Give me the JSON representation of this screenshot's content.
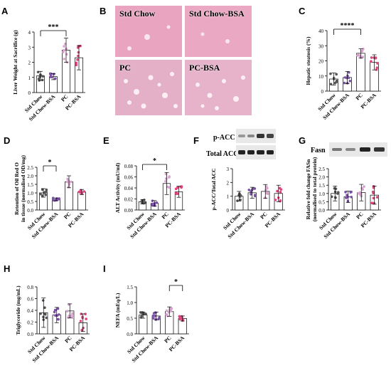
{
  "panel_labels": {
    "A": "A",
    "B": "B",
    "C": "C",
    "D": "D",
    "E": "E",
    "F": "F",
    "G": "G",
    "H": "H",
    "I": "I"
  },
  "groups": [
    "Std Chow",
    "Std Chow-BSA",
    "PC",
    "PC-BSA"
  ],
  "colors": {
    "std_chow": "#555555",
    "std_chow_bsa": "#7b52a8",
    "pc": "#d9a3cf",
    "pc_bsa": "#e0447f"
  },
  "histology": {
    "labels": [
      "Std Chow",
      "Std Chow-BSA",
      "PC",
      "PC-BSA"
    ]
  },
  "blots": {
    "f_top": "p-ACC",
    "f_bottom": "Total ACC",
    "g_top": "Fasn"
  },
  "chart_data": [
    {
      "panel": "A",
      "type": "bar",
      "categories": [
        "Std Chow",
        "Std Chow-BSA",
        "PC",
        "PC-BSA"
      ],
      "values": [
        1.1,
        1.05,
        2.8,
        2.3
      ],
      "errors": [
        0.3,
        0.2,
        0.8,
        0.8
      ],
      "ylabel": "Liver Weight at Sacrifice (g)",
      "ylim": [
        0,
        4
      ],
      "yticks": [
        "0",
        "1",
        "2",
        "3",
        "4"
      ],
      "significance": {
        "between": [
          0,
          2
        ],
        "text": "***"
      }
    },
    {
      "panel": "C",
      "type": "bar",
      "categories": [
        "Std Chow",
        "Std Chow-BSA",
        "PC",
        "PC-BSA"
      ],
      "values": [
        8,
        9,
        25,
        19
      ],
      "errors": [
        4,
        4,
        3,
        5
      ],
      "ylabel": "Hepatic steatosis (%)",
      "ylim": [
        0,
        40
      ],
      "yticks": [
        "0",
        "10",
        "20",
        "30",
        "40"
      ],
      "significance": {
        "between": [
          0,
          2
        ],
        "text": "****"
      }
    },
    {
      "panel": "D",
      "type": "bar",
      "categories": [
        "Std Chow",
        "Std Chow-BSA",
        "PC",
        "PC-BSA"
      ],
      "values": [
        1.0,
        0.62,
        1.65,
        1.05
      ],
      "errors": [
        0.25,
        0.08,
        0.35,
        0.15
      ],
      "ylabel": "Retention of Oil Red O in tissue (normalised OD/mg)",
      "ylim": [
        0,
        2.5
      ],
      "yticks": [
        "0.0",
        "0.5",
        "1.0",
        "1.5",
        "2.0",
        "2.5"
      ],
      "significance": {
        "between": [
          0,
          1
        ],
        "text": "*"
      }
    },
    {
      "panel": "E",
      "type": "bar",
      "categories": [
        "Std Chow",
        "Std Chow-BSA",
        "PC",
        "PC-BSA"
      ],
      "values": [
        0.015,
        0.012,
        0.048,
        0.033
      ],
      "errors": [
        0.004,
        0.005,
        0.02,
        0.01
      ],
      "ylabel": "ALT Activity (mU/ml)",
      "ylim": [
        0,
        0.08
      ],
      "yticks": [
        "0.00",
        "0.02",
        "0.04",
        "0.06",
        "0.08"
      ],
      "significance": {
        "between": [
          0,
          2
        ],
        "text": "*"
      }
    },
    {
      "panel": "F",
      "type": "bar",
      "categories": [
        "Std Chow",
        "Std Chow-BSA",
        "PC",
        "PC-BSA"
      ],
      "values": [
        1.0,
        1.25,
        1.35,
        1.2
      ],
      "errors": [
        0.35,
        0.4,
        0.5,
        0.6
      ],
      "ylabel": "p-ACC/Total ACC",
      "ylim": [
        0,
        3
      ],
      "yticks": [
        "0",
        "1",
        "2",
        "3"
      ]
    },
    {
      "panel": "G",
      "type": "bar",
      "categories": [
        "Std Chow",
        "Std Chow-BSA",
        "PC",
        "PC-BSA"
      ],
      "values": [
        1.0,
        0.8,
        1.05,
        0.9
      ],
      "errors": [
        0.45,
        0.35,
        0.5,
        0.55
      ],
      "ylabel": "Relative fold change FASn (normalised to total protein)",
      "ylim": [
        0,
        2.5
      ],
      "yticks": [
        "0.0",
        "0.5",
        "1.0",
        "1.5",
        "2.0",
        "2.5"
      ]
    },
    {
      "panel": "H",
      "type": "bar",
      "categories": [
        "Std Chow",
        "Std Chow-BSA",
        "PC",
        "PC-BSA"
      ],
      "values": [
        0.36,
        0.32,
        0.39,
        0.19
      ],
      "errors": [
        0.25,
        0.13,
        0.12,
        0.15
      ],
      "ylabel": "Triglyceride (mg/mL)",
      "ylim": [
        0,
        0.8
      ],
      "yticks": [
        "0.0",
        "0.2",
        "0.4",
        "0.6",
        "0.8"
      ]
    },
    {
      "panel": "I",
      "type": "bar",
      "categories": [
        "Std Chow",
        "Std Chow-BSA",
        "PC",
        "PC-BSA"
      ],
      "values": [
        0.6,
        0.57,
        0.71,
        0.49
      ],
      "errors": [
        0.1,
        0.12,
        0.15,
        0.08
      ],
      "ylabel": "NEFA (mEq/L)",
      "ylim": [
        0,
        1.5
      ],
      "yticks": [
        "0.0",
        "0.5",
        "1.0",
        "1.5"
      ],
      "significance": {
        "between": [
          2,
          3
        ],
        "text": "*"
      }
    }
  ]
}
